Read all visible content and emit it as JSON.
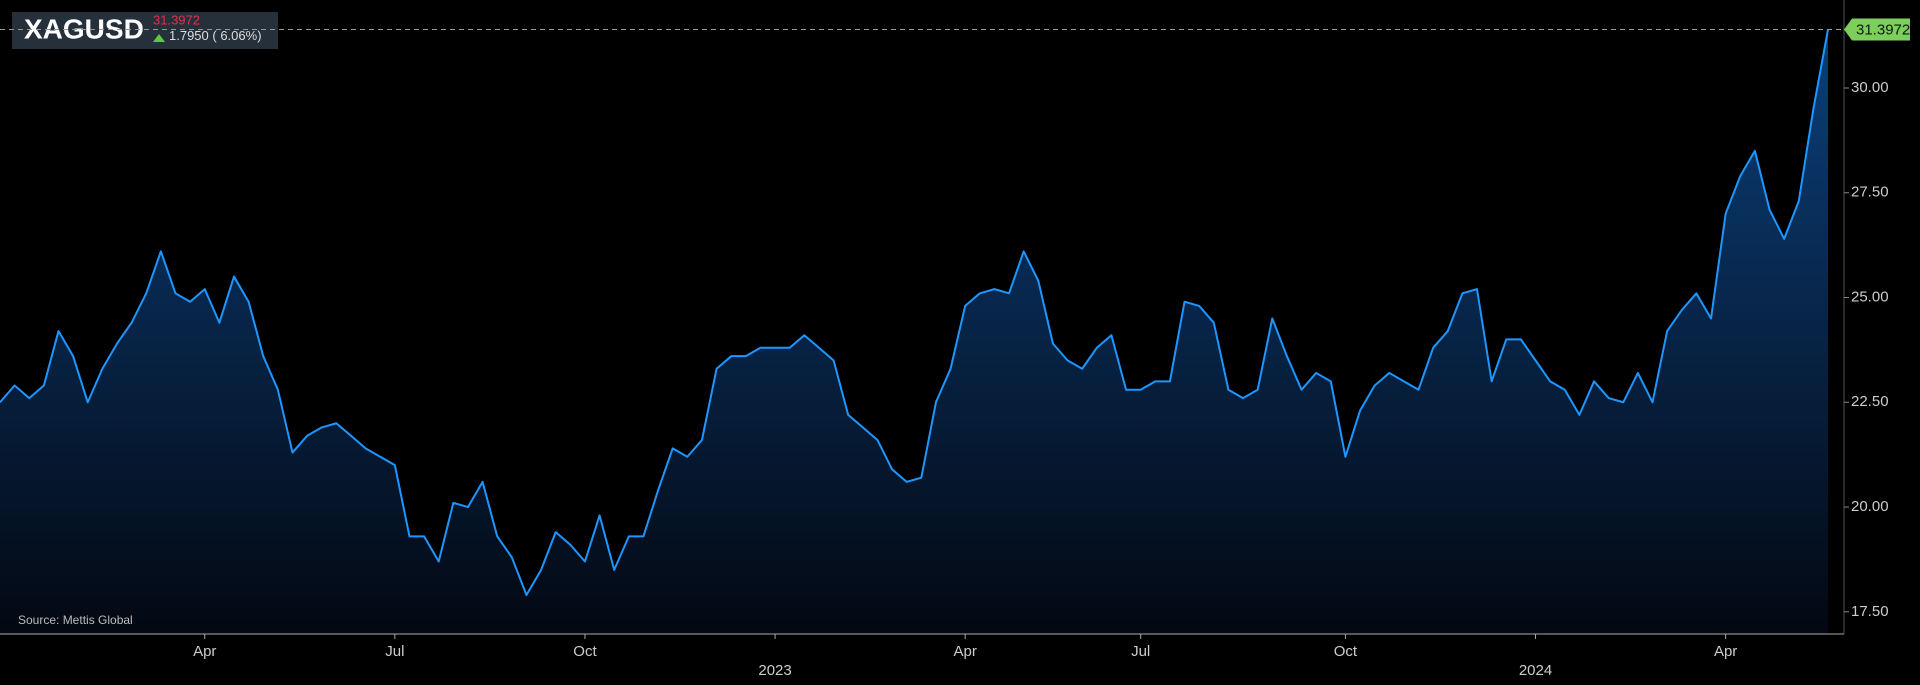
{
  "chart_data": {
    "type": "area",
    "header": {
      "price": 31.3972,
      "change": "1.7950",
      "change_pct": "( 6.06%)"
    },
    "source": "Source: Mettis Global",
    "categories": [
      null,
      null,
      null,
      null,
      null,
      null,
      null,
      null,
      null,
      null,
      null,
      null,
      null,
      null,
      "Apr",
      null,
      null,
      null,
      null,
      null,
      null,
      null,
      null,
      null,
      null,
      null,
      null,
      "Jul",
      null,
      null,
      null,
      null,
      null,
      null,
      null,
      null,
      null,
      null,
      null,
      null,
      "Oct",
      null,
      null,
      null,
      null,
      null,
      null,
      null,
      null,
      null,
      null,
      null,
      null,
      "2023",
      null,
      null,
      null,
      null,
      null,
      null,
      null,
      null,
      null,
      null,
      null,
      null,
      "Apr",
      null,
      null,
      null,
      null,
      null,
      null,
      null,
      null,
      null,
      null,
      null,
      "Jul",
      null,
      null,
      null,
      null,
      null,
      null,
      null,
      null,
      null,
      null,
      null,
      null,
      null,
      "Oct",
      null,
      null,
      null,
      null,
      null,
      null,
      null,
      null,
      null,
      null,
      null,
      null,
      "2024",
      null,
      null,
      null,
      null,
      null,
      null,
      null,
      null,
      null,
      null,
      null,
      null,
      "Apr",
      null,
      null,
      null,
      null,
      null,
      null,
      null
    ],
    "series": [
      {
        "name": "XAGUSD",
        "color": "#1e96ff",
        "values": [
          22.5,
          22.9,
          22.6,
          22.9,
          24.2,
          23.6,
          22.5,
          23.3,
          23.9,
          24.4,
          25.1,
          26.1,
          25.1,
          24.9,
          25.2,
          24.4,
          25.5,
          24.9,
          23.6,
          22.8,
          21.3,
          21.7,
          21.9,
          22.0,
          21.7,
          21.4,
          21.2,
          21.0,
          19.3,
          19.3,
          18.7,
          20.1,
          20.0,
          20.6,
          19.3,
          18.8,
          17.9,
          18.5,
          19.4,
          19.1,
          18.7,
          19.8,
          18.5,
          19.3,
          19.3,
          20.4,
          21.4,
          21.2,
          21.6,
          23.3,
          23.6,
          23.6,
          23.8,
          23.8,
          23.8,
          24.1,
          23.8,
          23.5,
          22.2,
          21.9,
          21.6,
          20.9,
          20.6,
          20.7,
          22.5,
          23.3,
          24.8,
          25.1,
          25.2,
          25.1,
          26.1,
          25.4,
          23.9,
          23.5,
          23.3,
          23.8,
          24.1,
          22.8,
          22.8,
          23.0,
          23.0,
          24.9,
          24.8,
          24.4,
          22.8,
          22.6,
          22.8,
          24.5,
          23.6,
          22.8,
          23.2,
          23.0,
          21.2,
          22.3,
          22.9,
          23.2,
          23.0,
          22.8,
          23.8,
          24.2,
          25.1,
          25.2,
          23.0,
          24.0,
          24.0,
          23.5,
          23.0,
          22.8,
          22.2,
          23.0,
          22.6,
          22.5,
          23.2,
          22.5,
          24.2,
          24.7,
          25.1,
          24.5,
          27.0,
          27.9,
          28.5,
          27.1,
          26.4,
          27.3,
          29.5,
          31.3972
        ]
      }
    ],
    "ylim": [
      16.97,
      32.1
    ],
    "yticks": [
      {
        "value": 17.5,
        "label": "17.50"
      },
      {
        "value": 20,
        "label": "20.00"
      },
      {
        "value": 22.5,
        "label": "22.50"
      },
      {
        "value": 25,
        "label": "25.00"
      },
      {
        "value": 27.5,
        "label": "27.50"
      },
      {
        "value": 30,
        "label": "30.00"
      }
    ],
    "last_value_line": true
  }
}
